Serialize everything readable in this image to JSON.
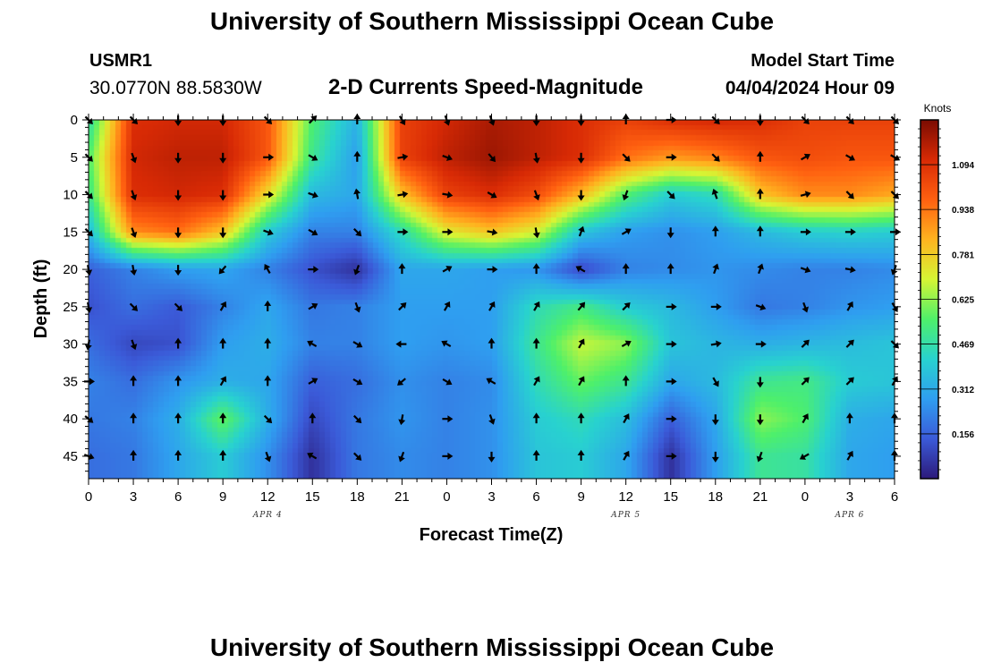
{
  "header": {
    "title_top": "University of Southern Mississippi Ocean Cube",
    "station_id": "USMR1",
    "coordinates": "30.0770N  88.5830W",
    "subtitle": "2-D Currents Speed-Magnitude",
    "model_start_label": "Model Start Time",
    "model_start_value": "04/04/2024 Hour 09",
    "title_bottom": "University of Southern Mississippi Ocean Cube"
  },
  "colors": {
    "scale": [
      "#2c1a7a",
      "#3b5ad8",
      "#2f9ef0",
      "#28d2cf",
      "#4ef06a",
      "#d6f534",
      "#ffb31f",
      "#ff6010",
      "#d82a05",
      "#7a0c02"
    ],
    "arrow": "#000000"
  },
  "chart_data": {
    "type": "heatmap",
    "title": "2-D Currents Speed-Magnitude",
    "xlabel": "Forecast Time(Z)",
    "ylabel": "Depth (ft)",
    "x_ticks": [
      "0",
      "3",
      "6",
      "9",
      "12",
      "15",
      "18",
      "21",
      "0",
      "3",
      "6",
      "9",
      "12",
      "15",
      "18",
      "21",
      "0",
      "3",
      "6"
    ],
    "date_labels": [
      {
        "label": "APR 4",
        "at_tick": 4
      },
      {
        "label": "APR 5",
        "at_tick": 12
      },
      {
        "label": "APR 6",
        "at_tick": 17
      }
    ],
    "y_ticks": [
      "0",
      "5",
      "10",
      "15",
      "20",
      "25",
      "30",
      "35",
      "40",
      "45"
    ],
    "ylim": [
      0,
      48
    ],
    "xlim_hours": [
      0,
      54
    ],
    "colorbar": {
      "unit": "Knots",
      "ticks": [
        "1.094",
        "0.938",
        "0.781",
        "0.625",
        "0.469",
        "0.312",
        "0.156"
      ],
      "tick_values": [
        1.094,
        0.938,
        0.781,
        0.625,
        0.469,
        0.312,
        0.156
      ],
      "range": [
        0,
        1.25
      ]
    },
    "depths_ft": [
      0,
      5,
      10,
      15,
      20,
      25,
      30,
      35,
      40,
      45
    ],
    "hours": [
      0,
      3,
      6,
      9,
      12,
      15,
      18,
      21,
      24,
      27,
      30,
      33,
      36,
      39,
      42,
      45,
      48,
      51,
      54
    ],
    "speed_knots": [
      [
        0.45,
        1.1,
        1.12,
        1.12,
        1.0,
        0.55,
        0.33,
        1.05,
        1.12,
        1.18,
        1.15,
        1.1,
        1.05,
        1.1,
        1.12,
        1.1,
        1.05,
        1.05,
        1.05
      ],
      [
        0.55,
        1.12,
        1.15,
        1.15,
        1.0,
        0.5,
        0.28,
        1.05,
        1.15,
        1.2,
        1.15,
        1.1,
        0.95,
        0.88,
        0.92,
        1.0,
        1.02,
        1.0,
        1.0
      ],
      [
        0.5,
        1.1,
        1.12,
        1.1,
        0.75,
        0.35,
        0.3,
        0.8,
        1.05,
        1.1,
        1.02,
        0.82,
        0.55,
        0.4,
        0.45,
        0.8,
        0.9,
        0.9,
        0.85
      ],
      [
        0.35,
        0.9,
        0.95,
        0.8,
        0.4,
        0.22,
        0.22,
        0.45,
        0.72,
        0.8,
        0.7,
        0.38,
        0.28,
        0.25,
        0.28,
        0.35,
        0.4,
        0.42,
        0.4
      ],
      [
        0.15,
        0.22,
        0.28,
        0.3,
        0.22,
        0.12,
        0.05,
        0.3,
        0.3,
        0.28,
        0.26,
        0.1,
        0.22,
        0.24,
        0.26,
        0.24,
        0.22,
        0.22,
        0.24
      ],
      [
        0.12,
        0.18,
        0.14,
        0.22,
        0.3,
        0.2,
        0.22,
        0.28,
        0.28,
        0.28,
        0.45,
        0.52,
        0.4,
        0.35,
        0.28,
        0.2,
        0.22,
        0.26,
        0.28
      ],
      [
        0.18,
        0.1,
        0.12,
        0.28,
        0.32,
        0.22,
        0.22,
        0.28,
        0.26,
        0.28,
        0.5,
        0.68,
        0.62,
        0.38,
        0.34,
        0.32,
        0.34,
        0.36,
        0.38
      ],
      [
        0.22,
        0.18,
        0.26,
        0.32,
        0.3,
        0.15,
        0.18,
        0.25,
        0.22,
        0.24,
        0.45,
        0.58,
        0.5,
        0.3,
        0.35,
        0.5,
        0.52,
        0.4,
        0.38
      ],
      [
        0.2,
        0.22,
        0.32,
        0.58,
        0.32,
        0.1,
        0.2,
        0.26,
        0.22,
        0.25,
        0.4,
        0.45,
        0.36,
        0.15,
        0.3,
        0.62,
        0.55,
        0.32,
        0.3
      ],
      [
        0.18,
        0.2,
        0.3,
        0.4,
        0.25,
        0.05,
        0.2,
        0.24,
        0.22,
        0.25,
        0.38,
        0.4,
        0.3,
        0.05,
        0.28,
        0.5,
        0.48,
        0.3,
        0.28
      ]
    ],
    "direction_deg": [
      [
        135,
        135,
        180,
        180,
        135,
        45,
        0,
        150,
        160,
        160,
        180,
        180,
        0,
        90,
        135,
        180,
        135,
        135,
        135
      ],
      [
        135,
        160,
        180,
        180,
        90,
        120,
        0,
        80,
        110,
        140,
        170,
        180,
        135,
        90,
        135,
        0,
        60,
        120,
        120
      ],
      [
        135,
        160,
        180,
        180,
        90,
        110,
        350,
        80,
        100,
        120,
        160,
        180,
        200,
        135,
        340,
        0,
        75,
        135,
        135
      ],
      [
        135,
        160,
        180,
        180,
        110,
        120,
        135,
        90,
        90,
        100,
        170,
        20,
        60,
        180,
        0,
        0,
        90,
        90,
        90
      ],
      [
        170,
        170,
        180,
        220,
        330,
        90,
        200,
        0,
        60,
        90,
        0,
        300,
        0,
        0,
        20,
        20,
        110,
        100,
        200
      ],
      [
        170,
        135,
        135,
        30,
        0,
        60,
        160,
        45,
        30,
        30,
        30,
        40,
        45,
        90,
        90,
        110,
        160,
        30,
        150
      ],
      [
        190,
        160,
        0,
        0,
        0,
        300,
        120,
        270,
        300,
        0,
        0,
        30,
        60,
        90,
        80,
        90,
        45,
        45,
        135
      ],
      [
        90,
        0,
        0,
        30,
        0,
        60,
        120,
        230,
        120,
        300,
        30,
        30,
        0,
        90,
        150,
        180,
        45,
        45,
        30
      ],
      [
        130,
        0,
        0,
        0,
        135,
        0,
        135,
        190,
        90,
        160,
        0,
        0,
        30,
        90,
        180,
        180,
        30,
        0,
        0
      ],
      [
        110,
        0,
        0,
        0,
        160,
        300,
        135,
        200,
        90,
        180,
        0,
        0,
        30,
        90,
        180,
        200,
        240,
        30,
        0
      ]
    ]
  }
}
